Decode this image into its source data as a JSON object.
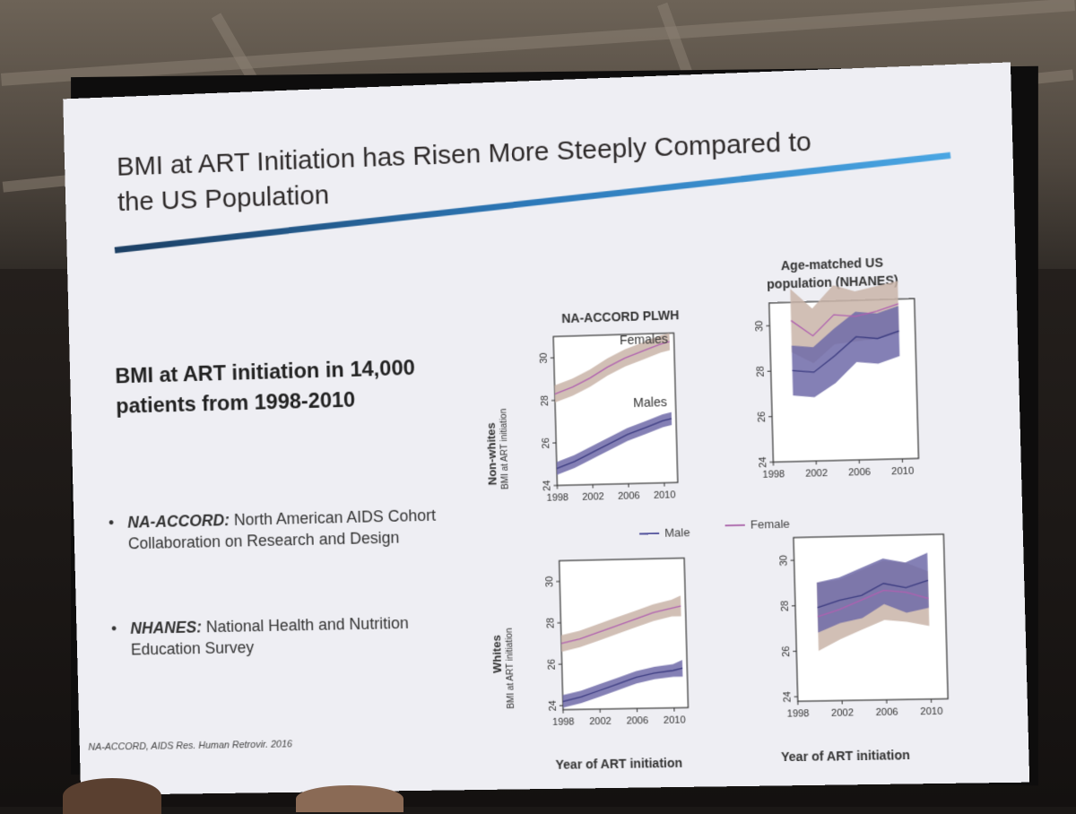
{
  "slide": {
    "title": "BMI at ART Initiation has Risen More Steeply Compared to the US Population",
    "headline": "BMI at ART initiation in 14,000 patients from 1998-2010",
    "bullets": [
      {
        "term": "NA-ACCORD:",
        "text": " North American AIDS Cohort Collaboration on Research and Design"
      },
      {
        "term": "NHANES:",
        "text": " National Health and Nutrition Education Survey"
      }
    ],
    "citation": "NA-ACCORD, AIDS Res. Human Retrovir. 2016",
    "bullet_symbol": "•"
  },
  "figure": {
    "left_column_title": "NA-ACCORD PLWH",
    "right_column_title": "Age-matched US population (NHANES)",
    "row_labels": [
      "Non-whites",
      "Whites"
    ],
    "y_axis_label": "BMI at ART initiation",
    "x_axis_title": "Year of ART initiation",
    "legend": [
      {
        "label": "Male",
        "color": "#5a5aa0"
      },
      {
        "label": "Female",
        "color": "#b070b0"
      }
    ],
    "in_panel_labels": [
      "Females",
      "Males"
    ],
    "colors": {
      "male_band": "#6f6aa8",
      "female_band": "#c9b4a8",
      "male_line": "#3b3b80",
      "female_line": "#b060b0"
    }
  },
  "chart_data": [
    {
      "type": "area",
      "panel": "NA-ACCORD PLWH / Non-whites",
      "x": [
        1998,
        2000,
        2002,
        2004,
        2006,
        2008,
        2010,
        2011
      ],
      "xticks": [
        1998,
        2002,
        2006,
        2010
      ],
      "yticks": [
        24,
        26,
        28,
        30
      ],
      "ylim": [
        24,
        31
      ],
      "series": [
        {
          "name": "Female",
          "values": [
            28.3,
            28.6,
            29.0,
            29.5,
            29.9,
            30.2,
            30.5,
            30.6
          ],
          "lower": [
            27.9,
            28.2,
            28.6,
            29.1,
            29.5,
            29.8,
            30.1,
            30.2
          ],
          "upper": [
            28.7,
            29.0,
            29.4,
            29.9,
            30.3,
            30.6,
            30.9,
            31.0
          ]
        },
        {
          "name": "Male",
          "values": [
            24.8,
            25.1,
            25.5,
            25.9,
            26.3,
            26.6,
            26.9,
            27.0
          ],
          "lower": [
            24.5,
            24.8,
            25.2,
            25.6,
            26.0,
            26.3,
            26.6,
            26.7
          ],
          "upper": [
            25.1,
            25.4,
            25.8,
            26.2,
            26.6,
            26.9,
            27.2,
            27.3
          ]
        }
      ]
    },
    {
      "type": "area",
      "panel": "NHANES / Non-whites",
      "x": [
        2000,
        2002,
        2004,
        2006,
        2008,
        2010
      ],
      "xticks": [
        1998,
        2002,
        2006,
        2010
      ],
      "yticks": [
        24,
        26,
        28,
        30
      ],
      "ylim": [
        24,
        31
      ],
      "series": [
        {
          "name": "Female",
          "values": [
            30.2,
            29.5,
            30.4,
            30.3,
            30.5,
            30.8
          ],
          "lower": [
            28.8,
            28.3,
            29.1,
            29.2,
            29.3,
            29.5
          ],
          "upper": [
            31.6,
            30.7,
            31.7,
            31.4,
            31.6,
            31.8
          ]
        },
        {
          "name": "Male",
          "values": [
            28.0,
            27.9,
            28.6,
            29.4,
            29.3,
            29.6
          ],
          "lower": [
            26.9,
            26.8,
            27.4,
            28.3,
            28.2,
            28.5
          ],
          "upper": [
            29.1,
            29.0,
            29.8,
            30.5,
            30.4,
            30.7
          ]
        }
      ]
    },
    {
      "type": "area",
      "panel": "NA-ACCORD PLWH / Whites",
      "x": [
        1998,
        2000,
        2002,
        2004,
        2006,
        2008,
        2010,
        2011
      ],
      "xticks": [
        1998,
        2002,
        2006,
        2010
      ],
      "yticks": [
        24,
        26,
        28,
        30
      ],
      "ylim": [
        23.8,
        31
      ],
      "series": [
        {
          "name": "Female",
          "values": [
            27.0,
            27.2,
            27.5,
            27.8,
            28.1,
            28.4,
            28.6,
            28.7
          ],
          "lower": [
            26.6,
            26.8,
            27.1,
            27.4,
            27.7,
            28.0,
            28.2,
            28.2
          ],
          "upper": [
            27.4,
            27.6,
            27.9,
            28.2,
            28.5,
            28.8,
            29.0,
            29.2
          ]
        },
        {
          "name": "Male",
          "values": [
            24.2,
            24.4,
            24.7,
            25.0,
            25.3,
            25.5,
            25.6,
            25.7
          ],
          "lower": [
            23.9,
            24.1,
            24.4,
            24.7,
            25.0,
            25.2,
            25.3,
            25.3
          ],
          "upper": [
            24.5,
            24.7,
            25.0,
            25.3,
            25.6,
            25.8,
            25.9,
            26.1
          ]
        }
      ]
    },
    {
      "type": "area",
      "panel": "NHANES / Whites",
      "x": [
        2000,
        2002,
        2004,
        2006,
        2008,
        2010
      ],
      "xticks": [
        1998,
        2002,
        2006,
        2010
      ],
      "yticks": [
        24,
        26,
        28,
        30
      ],
      "ylim": [
        23.8,
        31
      ],
      "series": [
        {
          "name": "Female",
          "values": [
            27.5,
            27.8,
            28.2,
            28.6,
            28.5,
            28.2
          ],
          "lower": [
            26.0,
            26.5,
            26.9,
            27.3,
            27.2,
            27.0
          ],
          "upper": [
            29.0,
            29.1,
            29.5,
            29.9,
            29.8,
            29.4
          ]
        },
        {
          "name": "Male",
          "values": [
            27.9,
            28.2,
            28.4,
            28.9,
            28.7,
            29.0
          ],
          "lower": [
            26.8,
            27.2,
            27.4,
            28.0,
            27.6,
            27.8
          ],
          "upper": [
            29.0,
            29.2,
            29.6,
            30.0,
            29.8,
            30.2
          ]
        }
      ]
    }
  ]
}
